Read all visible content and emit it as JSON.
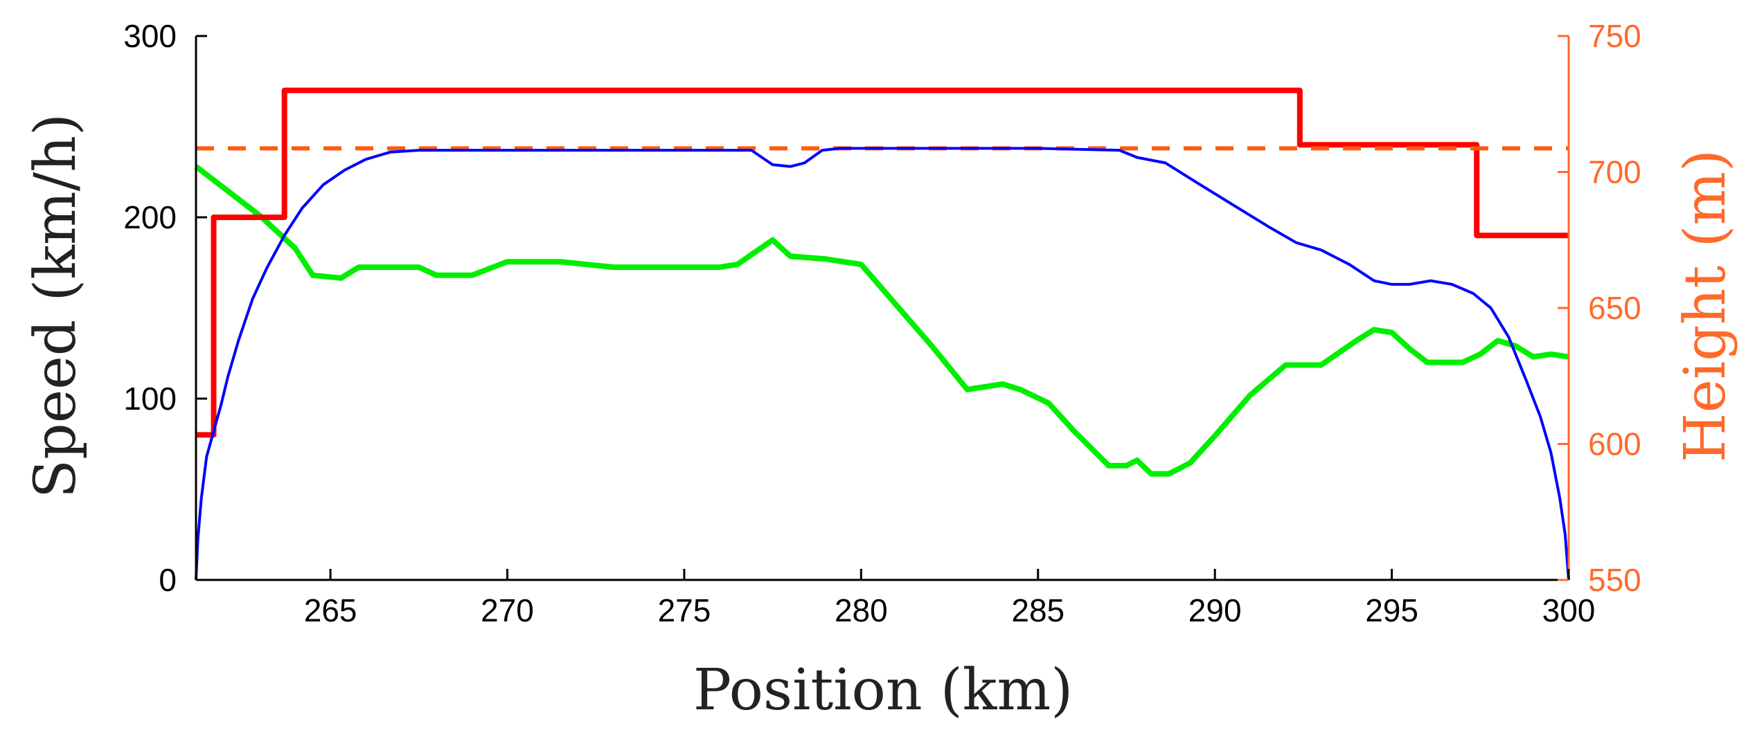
{
  "chart_data": {
    "type": "line",
    "xlabel": "Position (km)",
    "ylabel_left": "Speed (km/h)",
    "ylabel_right": "Height (m)",
    "xlim": [
      261.2,
      300
    ],
    "ylim_left": [
      0,
      300
    ],
    "ylim_right": [
      550,
      750
    ],
    "xticks": [
      265,
      270,
      275,
      280,
      285,
      290,
      295,
      300
    ],
    "yticks_left": [
      0,
      100,
      200,
      300
    ],
    "yticks_right": [
      550,
      600,
      650,
      700,
      750
    ],
    "grid": false,
    "colors": {
      "speed_limit": "#ff0000",
      "target_speed": "#ff5a14",
      "speed": "#0000ff",
      "height": "#00ee00",
      "right_axis": "#ff6a2a",
      "axis": "#000000"
    },
    "series": [
      {
        "key": "speed_limit",
        "axis": "left",
        "style": "solid-step",
        "x": [
          261.2,
          261.7,
          261.7,
          263.7,
          263.7,
          292.4,
          292.4,
          297.4,
          297.4,
          300.0
        ],
        "y": [
          80,
          80,
          200,
          200,
          270,
          270,
          240,
          240,
          190,
          190
        ]
      },
      {
        "key": "target_speed",
        "axis": "left",
        "style": "dashed",
        "x": [
          261.2,
          300.0
        ],
        "y": [
          238,
          238
        ]
      },
      {
        "key": "speed",
        "axis": "left",
        "style": "solid",
        "x": [
          261.2,
          261.25,
          261.35,
          261.5,
          261.7,
          261.9,
          262.1,
          262.4,
          262.8,
          263.2,
          263.7,
          264.2,
          264.8,
          265.4,
          266.0,
          266.7,
          267.5,
          270.0,
          275.0,
          276.9,
          277.5,
          278.0,
          278.4,
          278.9,
          279.4,
          282.0,
          285.0,
          287.3,
          287.8,
          288.6,
          289.5,
          290.5,
          291.5,
          292.3,
          293.0,
          293.8,
          294.5,
          295.0,
          295.5,
          296.1,
          296.7,
          297.3,
          297.8,
          298.3,
          298.8,
          299.2,
          299.5,
          299.75,
          299.9,
          300.0
        ],
        "y": [
          0,
          22,
          45,
          68,
          82,
          96,
          112,
          132,
          155,
          172,
          190,
          205,
          218,
          226,
          232,
          236,
          237,
          237,
          237,
          237,
          229,
          228,
          230,
          237,
          238,
          238,
          238,
          237,
          233,
          230,
          219,
          207,
          195,
          186,
          182,
          174,
          165,
          163,
          163,
          165,
          163,
          158,
          150,
          134,
          110,
          90,
          70,
          45,
          25,
          0
        ]
      },
      {
        "key": "height",
        "axis": "right",
        "style": "solid",
        "x": [
          261.2,
          262.0,
          263.0,
          264.0,
          264.5,
          265.3,
          265.8,
          266.5,
          267.5,
          268.0,
          269.0,
          270.0,
          271.5,
          273.0,
          274.5,
          276.0,
          276.5,
          277.5,
          278.0,
          279.0,
          280.0,
          281.0,
          282.0,
          283.0,
          284.0,
          284.5,
          285.3,
          286.0,
          287.0,
          287.5,
          287.8,
          288.2,
          288.7,
          289.3,
          290.0,
          291.0,
          292.0,
          292.5,
          293.0,
          294.0,
          294.5,
          295.0,
          295.5,
          296.0,
          297.0,
          297.5,
          298.0,
          298.5,
          299.0,
          299.5,
          300.0
        ],
        "y": [
          702,
          694,
          684,
          672,
          662,
          661,
          665,
          665,
          665,
          662,
          662,
          667,
          667,
          665,
          665,
          665,
          666,
          675,
          669,
          668,
          666,
          651,
          636,
          620,
          622,
          620,
          615,
          605,
          592,
          592,
          594,
          589,
          589,
          593,
          603,
          618,
          629,
          629,
          629,
          638,
          642,
          641,
          635,
          630,
          630,
          633,
          638,
          636,
          632,
          633,
          632
        ]
      }
    ]
  }
}
